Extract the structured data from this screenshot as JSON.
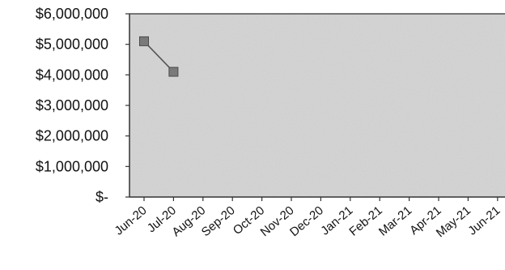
{
  "chart_data": {
    "type": "line",
    "title": "",
    "xlabel": "",
    "ylabel": "",
    "categories": [
      "Jun-20",
      "Jul-20",
      "Aug-20",
      "Sep-20",
      "Oct-20",
      "Nov-20",
      "Dec-20",
      "Jan-21",
      "Feb-21",
      "Mar-21",
      "Apr-21",
      "May-21",
      "Jun-21"
    ],
    "series": [
      {
        "values": [
          5100000,
          4100000,
          null,
          null,
          null,
          null,
          null,
          null,
          null,
          null,
          null,
          null,
          null
        ]
      }
    ],
    "ylim": [
      0,
      6000000
    ],
    "y_ticks": [
      6000000,
      5000000,
      4000000,
      3000000,
      2000000,
      1000000,
      0
    ],
    "y_tick_labels": [
      "$6,000,000",
      "$5,000,000",
      "$4,000,000",
      "$3,000,000",
      "$2,000,000",
      "$1,000,000",
      "$-"
    ],
    "grid": false,
    "legend": "none",
    "colors": {
      "plot_background": "#d6d6d6",
      "marker": "#7a7a7a",
      "line": "#555555",
      "axis": "#333333"
    }
  }
}
